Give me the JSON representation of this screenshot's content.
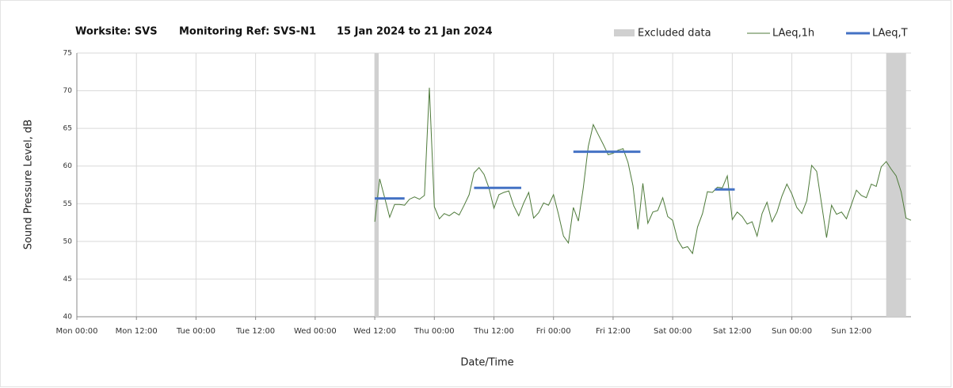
{
  "chart_data": {
    "type": "line",
    "title_parts": [
      "Worksite: SVS",
      "Monitoring Ref: SVS-N1",
      "15 Jan 2024 to 21 Jan 2024"
    ],
    "x_label": "Date/Time",
    "y_label": "Sound Pressure Level, dB",
    "xlim": [
      0,
      168
    ],
    "xticks": [
      {
        "value": 0,
        "label": "Mon 00:00"
      },
      {
        "value": 12,
        "label": "Mon 12:00"
      },
      {
        "value": 24,
        "label": "Tue 00:00"
      },
      {
        "value": 36,
        "label": "Tue 12:00"
      },
      {
        "value": 48,
        "label": "Wed 00:00"
      },
      {
        "value": 60,
        "label": "Wed 12:00"
      },
      {
        "value": 72,
        "label": "Thu 00:00"
      },
      {
        "value": 84,
        "label": "Thu 12:00"
      },
      {
        "value": 96,
        "label": "Fri 00:00"
      },
      {
        "value": 108,
        "label": "Fri 12:00"
      },
      {
        "value": 120,
        "label": "Sat 00:00"
      },
      {
        "value": 132,
        "label": "Sat 12:00"
      },
      {
        "value": 144,
        "label": "Sun 00:00"
      },
      {
        "value": 156,
        "label": "Sun 12:00"
      }
    ],
    "ylim": [
      40,
      75
    ],
    "yticks": [
      40,
      45,
      50,
      55,
      60,
      65,
      70,
      75
    ],
    "grid": true,
    "excluded": {
      "name": "Excluded data",
      "color": "#d0d0d0",
      "starts": [
        60,
        163
      ],
      "ends": [
        60.8,
        167
      ]
    },
    "series": [
      {
        "name": "LAeq,1h",
        "color": "#4e7a3a",
        "x": [
          60,
          61,
          62,
          63,
          64,
          65,
          66,
          67,
          68,
          69,
          70,
          71,
          72,
          73,
          74,
          75,
          76,
          77,
          78,
          79,
          80,
          81,
          82,
          83,
          84,
          85,
          86,
          87,
          88,
          89,
          90,
          91,
          92,
          93,
          94,
          95,
          96,
          97,
          98,
          99,
          100,
          101,
          102,
          103,
          104,
          105,
          106,
          107,
          108,
          109,
          110,
          111,
          112,
          113,
          114,
          115,
          116,
          117,
          118,
          119,
          120,
          121,
          122,
          123,
          124,
          125,
          126,
          127,
          128,
          129,
          130,
          131,
          132,
          133,
          134,
          135,
          136,
          137,
          138,
          139,
          140,
          141,
          142,
          143,
          144,
          145,
          146,
          147,
          148,
          149,
          150,
          151,
          152,
          153,
          154,
          155,
          156,
          157,
          158,
          159,
          160,
          161,
          162,
          163,
          164,
          165,
          166,
          167,
          168
        ],
        "values": [
          52.6,
          58.3,
          55.8,
          53.2,
          54.9,
          54.9,
          54.8,
          55.6,
          55.9,
          55.6,
          56.1,
          70.4,
          54.6,
          53.0,
          53.7,
          53.4,
          53.9,
          53.5,
          54.8,
          56.2,
          59.1,
          59.8,
          58.9,
          57.1,
          54.4,
          56.2,
          56.5,
          56.7,
          54.7,
          53.4,
          55.1,
          56.5,
          53.1,
          53.8,
          55.1,
          54.8,
          56.2,
          53.6,
          50.7,
          49.8,
          54.5,
          52.7,
          57.1,
          62.6,
          65.5,
          64.2,
          62.9,
          61.5,
          61.7,
          62.1,
          62.3,
          60.5,
          57.4,
          51.6,
          57.7,
          52.4,
          53.9,
          54.1,
          55.8,
          53.3,
          52.8,
          50.2,
          49.1,
          49.3,
          48.4,
          51.9,
          53.7,
          56.6,
          56.5,
          57.2,
          57.1,
          58.7,
          52.9,
          53.9,
          53.3,
          52.3,
          52.6,
          50.7,
          53.7,
          55.2,
          52.6,
          53.9,
          56.0,
          57.6,
          56.3,
          54.5,
          53.7,
          55.4,
          60.1,
          59.3,
          54.9,
          50.5,
          54.8,
          53.6,
          53.9,
          53.0,
          54.9,
          56.8,
          56.1,
          55.8,
          57.6,
          57.3,
          59.9,
          60.6,
          59.6,
          58.7,
          56.6,
          53.1,
          52.8
        ]
      },
      {
        "name": "LAeq,T",
        "color": "#4472c4",
        "starts": [
          60,
          80,
          100,
          128.5
        ],
        "ends": [
          66,
          89.5,
          113.5,
          132.5
        ],
        "values": [
          55.7,
          57.1,
          61.9,
          56.9
        ]
      }
    ]
  }
}
